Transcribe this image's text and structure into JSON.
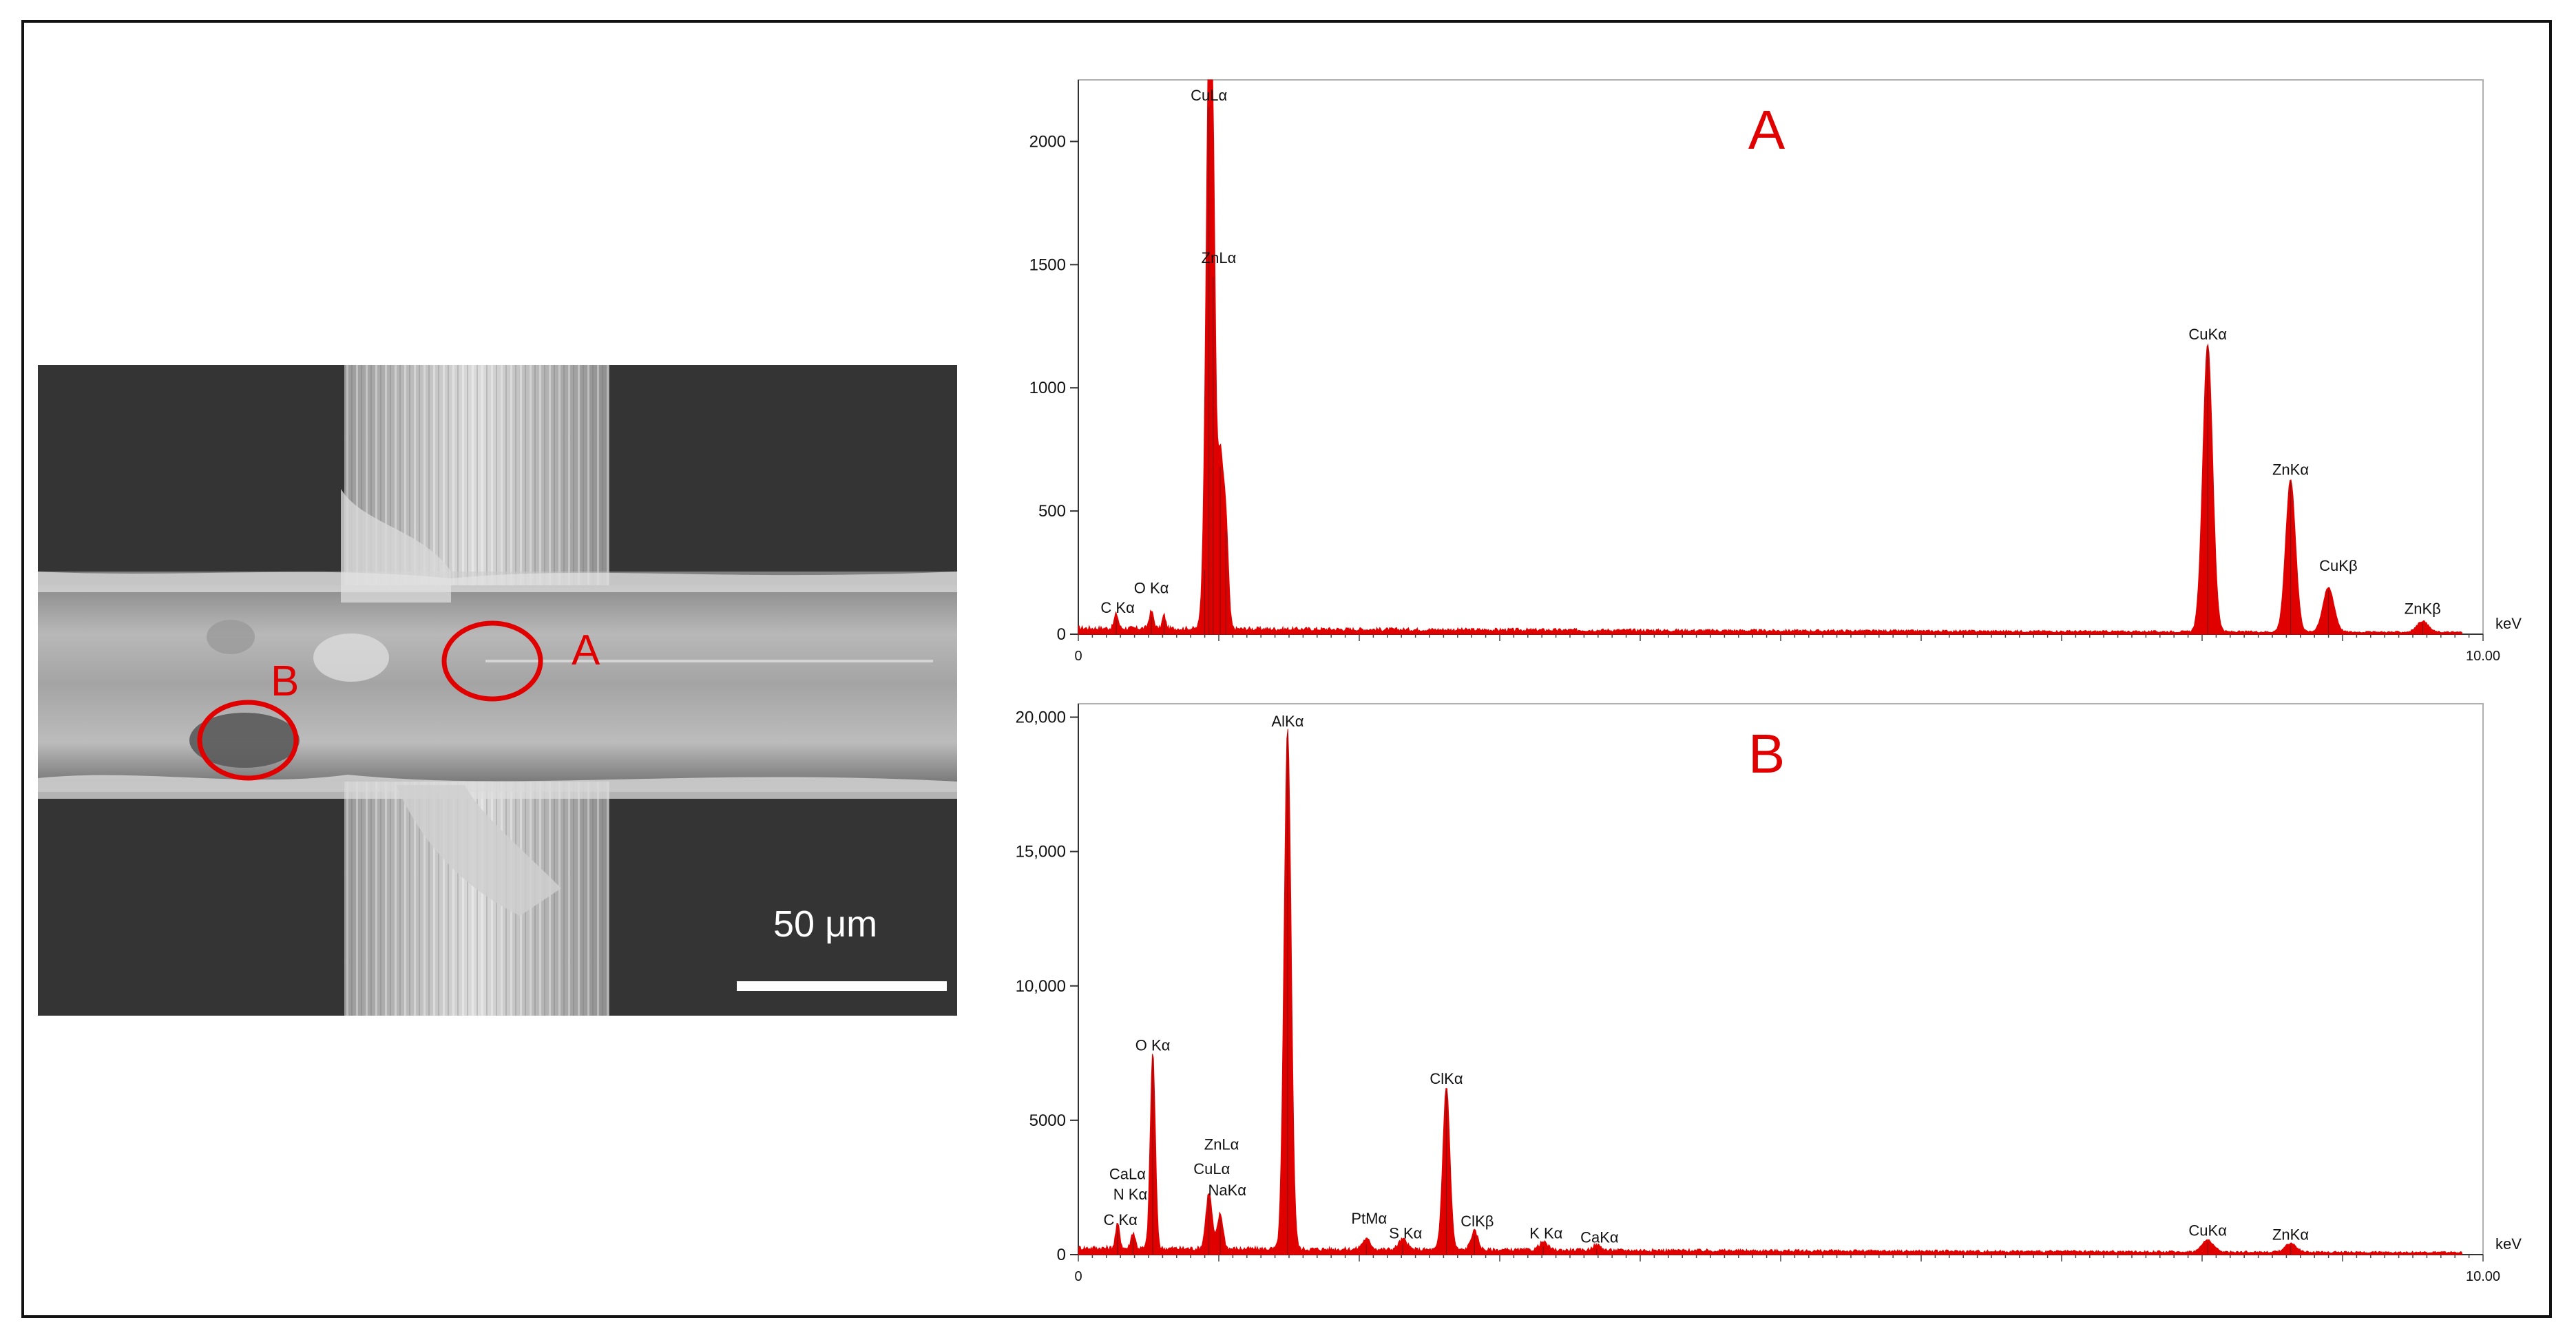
{
  "sem": {
    "label_a": "A",
    "label_b": "B",
    "scale_text": "50 μm"
  },
  "colors": {
    "spectrum": "#e00000",
    "annotation": "#e00000"
  },
  "chart_data": [
    {
      "type": "area",
      "panel_label": "A",
      "xlabel": "keV",
      "xlim": [
        0,
        10
      ],
      "ylim": [
        0,
        2250
      ],
      "x_ticks": [
        {
          "v": 0,
          "t": "0"
        },
        {
          "v": 10,
          "t": "10.00"
        }
      ],
      "y_ticks": [
        {
          "v": 0,
          "t": "0"
        },
        {
          "v": 500,
          "t": "500"
        },
        {
          "v": 1000,
          "t": "1000"
        },
        {
          "v": 1500,
          "t": "1500"
        },
        {
          "v": 2000,
          "t": "2000"
        }
      ],
      "baseline": 25,
      "peaks": [
        {
          "x": 0.27,
          "y": 60,
          "w": 0.014
        },
        {
          "x": 0.52,
          "y": 70,
          "w": 0.016
        },
        {
          "x": 0.61,
          "y": 55,
          "w": 0.012
        },
        {
          "x": 0.9,
          "y": 260,
          "w": 0.02
        },
        {
          "x": 0.93,
          "y": 2140,
          "w": 0.02
        },
        {
          "x": 0.96,
          "y": 1450,
          "w": 0.018
        },
        {
          "x": 1.01,
          "y": 680,
          "w": 0.02
        },
        {
          "x": 1.05,
          "y": 420,
          "w": 0.018
        },
        {
          "x": 8.04,
          "y": 1170,
          "w": 0.035
        },
        {
          "x": 8.63,
          "y": 620,
          "w": 0.035
        },
        {
          "x": 8.9,
          "y": 180,
          "w": 0.04
        },
        {
          "x": 9.57,
          "y": 45,
          "w": 0.04
        }
      ],
      "annotations": [
        {
          "x": 0.93,
          "y": 2150,
          "text": "CuLα"
        },
        {
          "x": 1.0,
          "y": 1490,
          "text": "ZnLα"
        },
        {
          "x": 0.28,
          "y": 70,
          "text": "C Kα"
        },
        {
          "x": 0.52,
          "y": 150,
          "text": "O Kα"
        },
        {
          "x": 8.04,
          "y": 1180,
          "text": "CuKα"
        },
        {
          "x": 8.63,
          "y": 630,
          "text": "ZnKα"
        },
        {
          "x": 8.97,
          "y": 240,
          "text": "CuKβ"
        },
        {
          "x": 9.57,
          "y": 65,
          "text": "ZnKβ"
        }
      ]
    },
    {
      "type": "area",
      "panel_label": "B",
      "xlabel": "keV",
      "xlim": [
        0,
        10
      ],
      "ylim": [
        0,
        20500
      ],
      "x_ticks": [
        {
          "v": 0,
          "t": "0"
        },
        {
          "v": 10,
          "t": "10.00"
        }
      ],
      "y_ticks": [
        {
          "v": 0,
          "t": "0"
        },
        {
          "v": 5000,
          "t": "5000"
        },
        {
          "v": 10000,
          "t": "10,000"
        },
        {
          "v": 15000,
          "t": "15,000"
        },
        {
          "v": 20000,
          "t": "20,000"
        }
      ],
      "baseline": 250,
      "peaks": [
        {
          "x": 0.28,
          "y": 900,
          "w": 0.015
        },
        {
          "x": 0.39,
          "y": 600,
          "w": 0.015
        },
        {
          "x": 0.53,
          "y": 7300,
          "w": 0.018
        },
        {
          "x": 0.93,
          "y": 2100,
          "w": 0.022
        },
        {
          "x": 1.01,
          "y": 1300,
          "w": 0.02
        },
        {
          "x": 1.49,
          "y": 19400,
          "w": 0.025
        },
        {
          "x": 2.05,
          "y": 380,
          "w": 0.03
        },
        {
          "x": 2.31,
          "y": 380,
          "w": 0.03
        },
        {
          "x": 2.62,
          "y": 6100,
          "w": 0.025
        },
        {
          "x": 2.82,
          "y": 700,
          "w": 0.025
        },
        {
          "x": 3.31,
          "y": 300,
          "w": 0.03
        },
        {
          "x": 3.69,
          "y": 200,
          "w": 0.03
        },
        {
          "x": 8.04,
          "y": 450,
          "w": 0.04
        },
        {
          "x": 8.63,
          "y": 330,
          "w": 0.04
        }
      ],
      "annotations": [
        {
          "x": 1.49,
          "y": 19500,
          "text": "AlKα"
        },
        {
          "x": 0.53,
          "y": 7450,
          "text": "O Kα"
        },
        {
          "x": 2.62,
          "y": 6200,
          "text": "ClKα"
        },
        {
          "x": 1.02,
          "y": 3750,
          "text": "ZnLα"
        },
        {
          "x": 0.95,
          "y": 2850,
          "text": "CuLα"
        },
        {
          "x": 1.06,
          "y": 2050,
          "text": "NaKα"
        },
        {
          "x": 0.35,
          "y": 2650,
          "text": "CaLα"
        },
        {
          "x": 0.37,
          "y": 1900,
          "text": "N Kα"
        },
        {
          "x": 0.3,
          "y": 950,
          "text": "C Kα"
        },
        {
          "x": 2.07,
          "y": 1000,
          "text": "PtMα"
        },
        {
          "x": 2.33,
          "y": 450,
          "text": "S Kα"
        },
        {
          "x": 2.84,
          "y": 900,
          "text": "ClKβ"
        },
        {
          "x": 3.33,
          "y": 450,
          "text": "K Kα"
        },
        {
          "x": 3.71,
          "y": 300,
          "text": "CaKα"
        },
        {
          "x": 8.04,
          "y": 550,
          "text": "CuKα"
        },
        {
          "x": 8.63,
          "y": 400,
          "text": "ZnKα"
        }
      ]
    }
  ]
}
